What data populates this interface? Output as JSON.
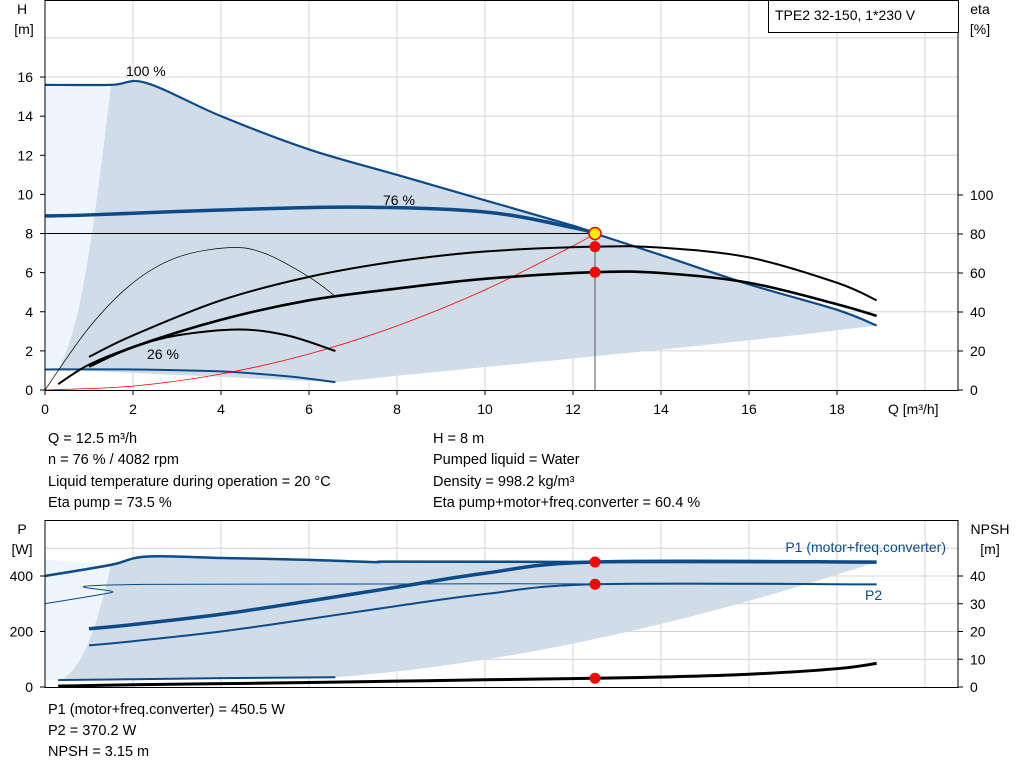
{
  "title_box": "TPE2 32-150, 1*230 V",
  "colors": {
    "blue": "#0c4a88",
    "shade": "#d0dce8",
    "light": "#eef5fc",
    "red": "#ff0000",
    "yellow": "#ffee00"
  },
  "chart_data": [
    {
      "type": "line",
      "name": "QH",
      "xlabel": "Q [m³/h]",
      "ylabel": "H",
      "ylabel_unit": "[m]",
      "y2label": "eta",
      "y2label_unit": "[%]",
      "xlim": [
        0,
        20.5
      ],
      "ylim": [
        0,
        20
      ],
      "y2lim": [
        0,
        200
      ],
      "xticks": [
        0,
        2,
        4,
        6,
        8,
        10,
        12,
        14,
        16,
        18
      ],
      "yticks": [
        0,
        2,
        4,
        6,
        8,
        10,
        12,
        14,
        16
      ],
      "y2ticks": [
        0,
        20,
        40,
        60,
        80,
        100
      ],
      "grid": true,
      "annotations": [
        {
          "text": "100 %",
          "x": 2.5,
          "y": 16.3
        },
        {
          "text": "76 %",
          "x": 8.8,
          "y": 9.6
        },
        {
          "text": "26 %",
          "x": 2.3,
          "y": 1.6
        }
      ],
      "series": [
        {
          "id": "h100",
          "axis": "H",
          "color": "#0c4a88",
          "width": 2.2,
          "x": [
            0,
            1.5,
            2.3,
            4,
            6,
            8,
            10,
            12,
            12.5,
            14,
            16,
            18,
            18.9
          ],
          "y": [
            15.6,
            15.6,
            15.7,
            14,
            12.3,
            11,
            9.7,
            8.4,
            8,
            6.9,
            5.4,
            4.1,
            3.3
          ]
        },
        {
          "id": "h76",
          "axis": "H",
          "color": "#0c4a88",
          "width": 3.5,
          "x": [
            0,
            1,
            4,
            7,
            10,
            12,
            12.5
          ],
          "y": [
            8.9,
            8.95,
            9.2,
            9.35,
            9.1,
            8.3,
            8
          ]
        },
        {
          "id": "h26",
          "axis": "H",
          "color": "#0c4a88",
          "width": 2,
          "x": [
            0,
            2,
            4,
            5.5,
            6.6
          ],
          "y": [
            1.05,
            1.05,
            0.95,
            0.7,
            0.4
          ]
        },
        {
          "id": "system-curve",
          "axis": "H",
          "color": "#ff0000",
          "width": 0.8,
          "x": [
            0,
            2,
            4,
            6,
            8,
            10,
            12,
            12.5
          ],
          "y": [
            0,
            0.2,
            0.82,
            1.84,
            3.28,
            5.12,
            7.37,
            8
          ]
        },
        {
          "id": "eta-pump",
          "axis": "eta",
          "color": "#000",
          "width": 2,
          "x": [
            1,
            2,
            4,
            6,
            8,
            10,
            12.5,
            14,
            16,
            18,
            18.9
          ],
          "y": [
            17,
            28,
            46,
            58,
            66,
            71,
            73.5,
            73,
            68,
            55,
            46
          ]
        },
        {
          "id": "eta-total",
          "axis": "eta",
          "color": "#000",
          "width": 2.6,
          "x": [
            1,
            2,
            4,
            6,
            8,
            10,
            12.5,
            14,
            16,
            18,
            18.9
          ],
          "y": [
            12,
            22,
            36,
            46,
            52,
            57,
            60.4,
            60,
            55,
            44,
            38
          ]
        },
        {
          "id": "eta-pump-low",
          "axis": "eta",
          "color": "#000",
          "width": 0.7,
          "x": [
            0,
            1,
            2,
            3,
            4.2,
            5,
            6,
            6.6
          ],
          "y": [
            0,
            32,
            55,
            68,
            73,
            70,
            58,
            48
          ]
        },
        {
          "id": "eta-26",
          "axis": "eta",
          "color": "#000",
          "width": 2,
          "x": [
            0.3,
            1,
            2,
            3,
            4.4,
            5.5,
            6.6
          ],
          "y": [
            3,
            13,
            22,
            28,
            31,
            28,
            20
          ]
        }
      ],
      "operating_point": {
        "Q": 12.5,
        "H": 8,
        "eta_pump": 73.5,
        "eta_total": 60.4
      }
    },
    {
      "type": "line",
      "name": "P",
      "ylabel": "P",
      "ylabel_unit": "[W]",
      "y2label": "NPSH",
      "y2label_unit": "[m]",
      "xlim": [
        0,
        20.5
      ],
      "ylim": [
        0,
        550
      ],
      "y2lim": [
        0,
        55
      ],
      "yticks": [
        0,
        200,
        400
      ],
      "y2ticks": [
        0,
        10,
        20,
        30,
        40
      ],
      "legend": [
        {
          "text": "P1 (motor+freq.converter)"
        },
        {
          "text": "P2"
        }
      ],
      "series": [
        {
          "id": "p1-100",
          "axis": "P",
          "color": "#0c4a88",
          "width": 2.5,
          "x": [
            0,
            1.5,
            2.3,
            4,
            6,
            7.5,
            8,
            12.5,
            18.9
          ],
          "y": [
            400,
            440,
            470,
            465,
            458,
            450,
            452,
            450.5,
            450
          ]
        },
        {
          "id": "p1-76",
          "axis": "P",
          "color": "#0c4a88",
          "width": 3.5,
          "x": [
            1,
            2,
            4,
            6,
            8,
            10,
            12.5,
            18.9
          ],
          "y": [
            210,
            225,
            262,
            310,
            360,
            410,
            450.5,
            450
          ]
        },
        {
          "id": "p2-100",
          "axis": "P",
          "color": "#0c4a88",
          "width": 1,
          "x": [
            0,
            1.5,
            2.3,
            18.9
          ],
          "y": [
            300,
            340,
            370,
            370
          ]
        },
        {
          "id": "p2-76",
          "axis": "P",
          "color": "#0c4a88",
          "width": 2,
          "x": [
            1,
            2,
            4,
            6,
            8,
            10,
            12.5,
            18.9
          ],
          "y": [
            150,
            165,
            200,
            245,
            292,
            335,
            370.2,
            370
          ]
        },
        {
          "id": "p1-26",
          "axis": "P",
          "color": "#0c4a88",
          "width": 2,
          "x": [
            0.3,
            2,
            4,
            6.6
          ],
          "y": [
            25,
            28,
            32,
            35
          ]
        },
        {
          "id": "npsh",
          "axis": "NPSH",
          "color": "#000",
          "width": 3,
          "x": [
            0.3,
            2,
            4,
            6,
            8,
            10,
            12.5,
            14,
            16,
            18,
            18.9
          ],
          "y": [
            0.3,
            0.8,
            1.2,
            1.6,
            2.1,
            2.6,
            3.15,
            3.6,
            4.6,
            6.6,
            8.5
          ]
        }
      ],
      "operating_point": {
        "Q": 12.5,
        "P1": 450.5,
        "P2": 370.2,
        "NPSH": 3.15
      }
    }
  ],
  "info_top": {
    "left": [
      "Q = 12.5 m³/h",
      "n = 76 % / 4082 rpm",
      "Liquid temperature during operation = 20 °C",
      "Eta pump = 73.5 %"
    ],
    "right": [
      "H = 8 m",
      "Pumped liquid = Water",
      "Density = 998.2 kg/m³",
      "Eta pump+motor+freq.converter = 60.4 %"
    ]
  },
  "info_bottom": [
    "P1 (motor+freq.converter) = 450.5 W",
    "P2 = 370.2 W",
    "NPSH = 3.15 m"
  ]
}
